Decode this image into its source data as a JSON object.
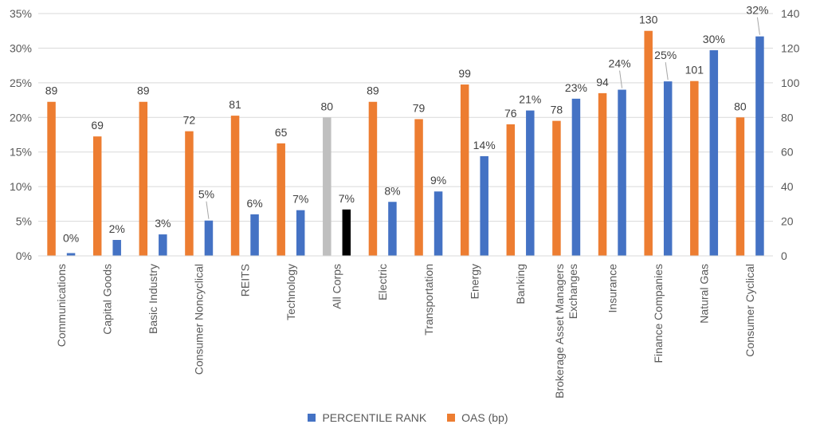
{
  "chart_data": {
    "type": "bar",
    "categories": [
      [
        "Communications"
      ],
      [
        "Capital Goods"
      ],
      [
        "Basic Industry"
      ],
      [
        "Consumer Noncyclical"
      ],
      [
        "REITS"
      ],
      [
        "Technology"
      ],
      [
        "All Corps"
      ],
      [
        "Electric"
      ],
      [
        "Transportation"
      ],
      [
        "Energy"
      ],
      [
        "Banking"
      ],
      [
        "Brokerage Asset Managers",
        "Exchanges"
      ],
      [
        "Insurance"
      ],
      [
        "Finance Companies"
      ],
      [
        "Natural Gas"
      ],
      [
        "Consumer Cyclical"
      ]
    ],
    "series": [
      {
        "name": "OAS (bp)",
        "axis": "right",
        "color": "#ED7D31",
        "values": [
          89,
          69,
          89,
          72,
          81,
          65,
          80,
          89,
          79,
          99,
          76,
          78,
          94,
          130,
          101,
          80
        ],
        "labels": [
          "89",
          "69",
          "89",
          "72",
          "81",
          "65",
          "80",
          "89",
          "79",
          "99",
          "76",
          "78",
          "94",
          "130",
          "101",
          "80"
        ],
        "highlight_index": 6,
        "highlight_color": "#BFBFBF"
      },
      {
        "name": "PERCENTILE RANK",
        "axis": "left",
        "color": "#4472C4",
        "values": [
          0.4,
          2.3,
          3.1,
          5.1,
          6.0,
          6.6,
          6.7,
          7.8,
          9.3,
          14.4,
          21.0,
          22.7,
          24.0,
          25.2,
          29.7,
          31.7
        ],
        "labels": [
          "0%",
          "2%",
          "3%",
          "5%",
          "6%",
          "7%",
          "7%",
          "8%",
          "9%",
          "14%",
          "21%",
          "23%",
          "24%",
          "25%",
          "30%",
          "32%"
        ],
        "highlight_index": 6,
        "highlight_color": "#000000"
      }
    ],
    "y_left": {
      "min": 0,
      "max": 35,
      "step": 5,
      "ticks": [
        "0%",
        "5%",
        "10%",
        "15%",
        "20%",
        "25%",
        "30%",
        "35%"
      ]
    },
    "y_right": {
      "min": 0,
      "max": 140,
      "step": 20,
      "ticks": [
        "0",
        "20",
        "40",
        "60",
        "80",
        "100",
        "120",
        "140"
      ]
    },
    "grid": true,
    "legend": [
      {
        "name": "PERCENTILE RANK",
        "color": "#4472C4"
      },
      {
        "name": "OAS (bp)",
        "color": "#ED7D31"
      }
    ],
    "legend_position": "bottom",
    "callouts": [
      3,
      12,
      13,
      15
    ]
  }
}
